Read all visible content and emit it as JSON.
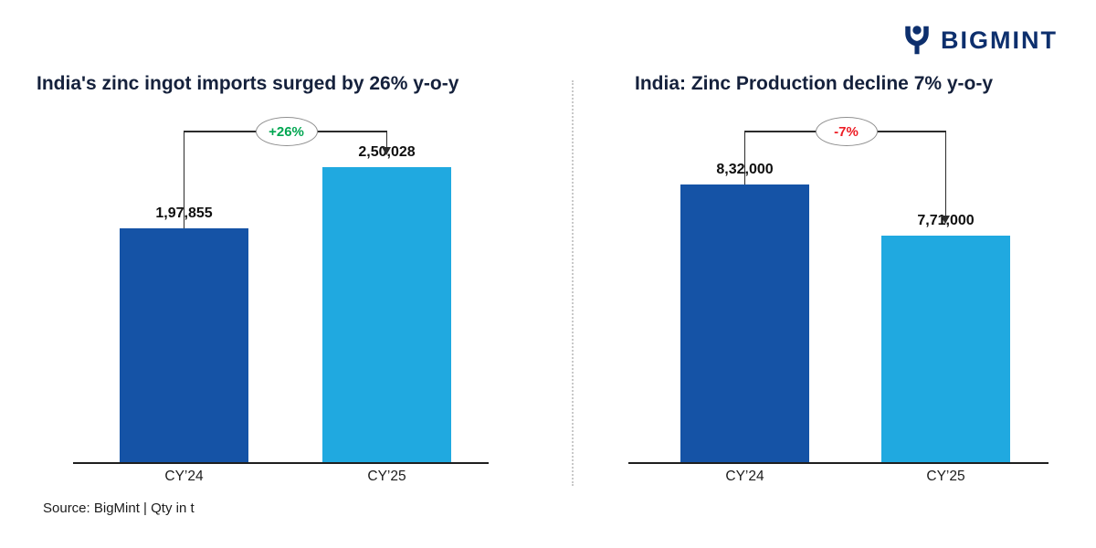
{
  "brand": {
    "name": "BIGMINT",
    "color": "#0d2f6d",
    "icon": "bigmint-figure-icon"
  },
  "footer": {
    "text": "Source: BigMint | Qty in t"
  },
  "chart_data": [
    {
      "type": "bar",
      "title": "India's zinc ingot imports surged by 26% y-o-y",
      "categories": [
        "CY’24",
        "CY’25"
      ],
      "values": [
        197855,
        250028
      ],
      "value_labels": [
        "1,97,855",
        "2,50,028"
      ],
      "series_colors": [
        "#1553a6",
        "#20a9e0"
      ],
      "annotation": {
        "label": "+26%",
        "color": "#00a651",
        "from": "CY’24",
        "to": "CY’25"
      },
      "xlabel": "",
      "ylabel": "",
      "ylim": [
        0,
        262000
      ],
      "grid": false,
      "legend": false
    },
    {
      "type": "bar",
      "title": "India: Zinc Production decline 7% y-o-y",
      "categories": [
        "CY’24",
        "CY’25"
      ],
      "values": [
        832000,
        771000
      ],
      "value_labels": [
        "8,32,000",
        "7,71,000"
      ],
      "series_colors": [
        "#1553a6",
        "#20a9e0"
      ],
      "annotation": {
        "label": "-7%",
        "color": "#ed1c24",
        "from": "CY’24",
        "to": "CY’25"
      },
      "xlabel": "",
      "ylabel": "",
      "ylim": [
        500000,
        870000
      ],
      "grid": false,
      "legend": false
    }
  ]
}
